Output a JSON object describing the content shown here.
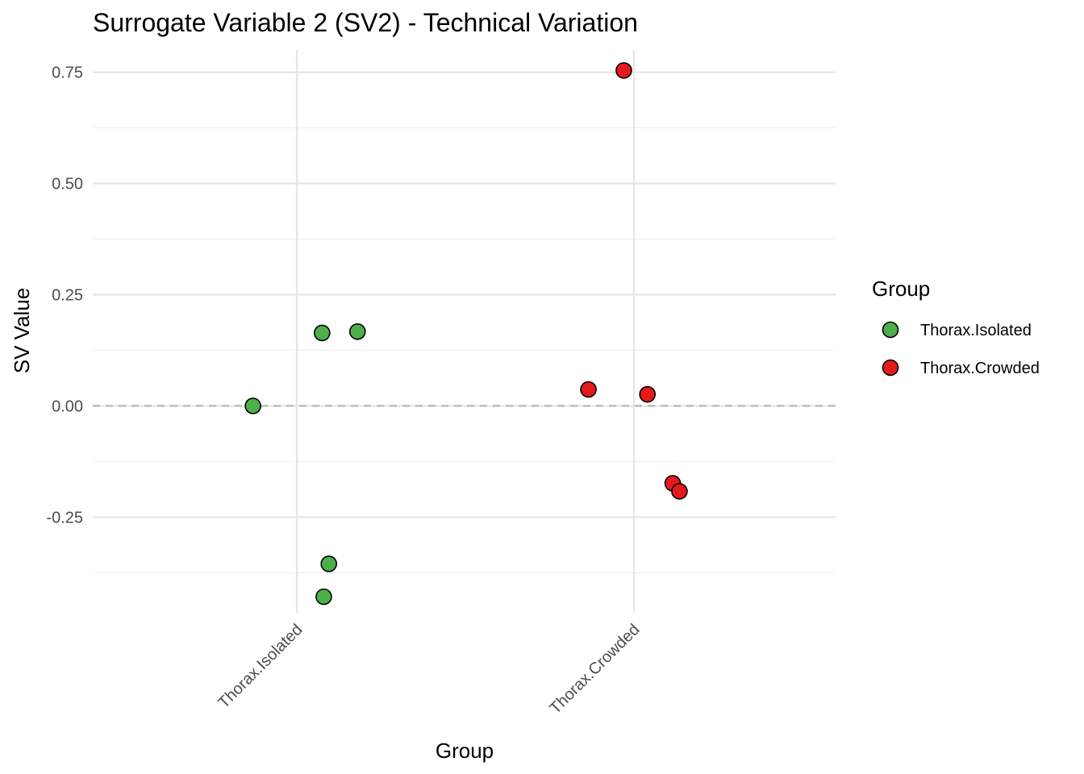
{
  "chart_data": {
    "type": "scatter",
    "title": "Surrogate Variable 2 (SV2) - Technical Variation",
    "xlabel": "Group",
    "ylabel": "SV Value",
    "categories": [
      "Thorax.Isolated",
      "Thorax.Crowded"
    ],
    "ylim": [
      -0.465,
      0.8
    ],
    "y_ticks": [
      0.75,
      0.5,
      0.25,
      0.0,
      -0.25
    ],
    "y_tick_labels": [
      "0.75",
      "0.50",
      "0.25",
      "0.00",
      "-0.25"
    ],
    "reference_line": {
      "y": 0,
      "style": "dashed"
    },
    "grid": true,
    "legend": {
      "title": "Group",
      "position": "right",
      "entries": [
        "Thorax.Isolated",
        "Thorax.Crowded"
      ]
    },
    "series": [
      {
        "name": "Thorax.Isolated",
        "color": "#4DAF4A",
        "points": [
          {
            "category": "Thorax.Isolated",
            "jitter": -0.13,
            "y": 0.0
          },
          {
            "category": "Thorax.Isolated",
            "jitter": 0.075,
            "y": 0.164
          },
          {
            "category": "Thorax.Isolated",
            "jitter": 0.18,
            "y": 0.167
          },
          {
            "category": "Thorax.Isolated",
            "jitter": 0.095,
            "y": -0.355
          },
          {
            "category": "Thorax.Isolated",
            "jitter": 0.08,
            "y": -0.429
          }
        ]
      },
      {
        "name": "Thorax.Crowded",
        "color": "#E41A1C",
        "points": [
          {
            "category": "Thorax.Crowded",
            "jitter": -0.03,
            "y": 0.754
          },
          {
            "category": "Thorax.Crowded",
            "jitter": -0.135,
            "y": 0.037
          },
          {
            "category": "Thorax.Crowded",
            "jitter": 0.04,
            "y": 0.026
          },
          {
            "category": "Thorax.Crowded",
            "jitter": 0.115,
            "y": -0.174
          },
          {
            "category": "Thorax.Crowded",
            "jitter": 0.135,
            "y": -0.192
          }
        ]
      }
    ]
  }
}
